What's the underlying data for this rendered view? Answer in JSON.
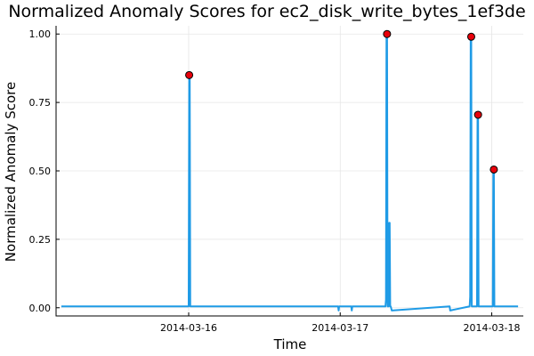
{
  "chart_data": {
    "type": "line",
    "title": "Normalized Anomaly Scores for ec2_disk_write_bytes_1ef3de",
    "xlabel": "Time",
    "ylabel": "Normalized Anomaly Score",
    "xlim": [
      "2014-03-15 03:00",
      "2014-03-18 05:00"
    ],
    "ylim": [
      -0.03,
      1.03
    ],
    "xticks": [
      "2014-03-16",
      "2014-03-17",
      "2014-03-18"
    ],
    "yticks": [
      "0.00",
      "0.25",
      "0.50",
      "0.75",
      "1.00"
    ],
    "grid": true,
    "legend": "none",
    "series": [
      {
        "color": "#1f9be6",
        "x": [
          "2014-03-15 03:50",
          "2014-03-16 00:00",
          "2014-03-16 00:05",
          "2014-03-16 00:10",
          "2014-03-16 00:15",
          "2014-03-16 00:20",
          "2014-03-16 23:40",
          "2014-03-16 23:45",
          "2014-03-16 23:50",
          "2014-03-17 01:45",
          "2014-03-17 01:50",
          "2014-03-17 01:55",
          "2014-03-17 06:00",
          "2014-03-17 07:10",
          "2014-03-17 07:15",
          "2014-03-17 07:20",
          "2014-03-17 07:25",
          "2014-03-17 07:30",
          "2014-03-17 07:40",
          "2014-03-17 07:45",
          "2014-03-17 07:50",
          "2014-03-17 07:55",
          "2014-03-17 08:00",
          "2014-03-17 08:10",
          "2014-03-17 17:20",
          "2014-03-17 17:25",
          "2014-03-17 20:30",
          "2014-03-17 20:35",
          "2014-03-17 20:40",
          "2014-03-17 20:45",
          "2014-03-17 20:50",
          "2014-03-17 21:40",
          "2014-03-17 21:45",
          "2014-03-17 21:50",
          "2014-03-17 21:55",
          "2014-03-17 22:00",
          "2014-03-17 23:20",
          "2014-03-18 00:10",
          "2014-03-18 00:15",
          "2014-03-18 00:20",
          "2014-03-18 00:25",
          "2014-03-18 00:30",
          "2014-03-18 04:10"
        ],
        "y": [
          0.005,
          0.005,
          0.85,
          0.85,
          0.005,
          0.005,
          0.005,
          -0.01,
          0.005,
          0.005,
          -0.01,
          0.005,
          0.005,
          0.005,
          0.03,
          1.0,
          1.0,
          0.005,
          0.005,
          0.31,
          0.31,
          0.005,
          0.005,
          -0.01,
          0.005,
          -0.01,
          0.005,
          0.04,
          0.99,
          0.99,
          0.005,
          0.005,
          0.705,
          0.705,
          0.005,
          0.005,
          0.005,
          0.005,
          0.505,
          0.505,
          0.005,
          0.005,
          0.005
        ]
      }
    ],
    "markers": {
      "color": "#e8000b",
      "x": [
        "2014-03-16 00:05",
        "2014-03-17 07:25",
        "2014-03-17 20:45",
        "2014-03-17 21:50",
        "2014-03-18 00:20"
      ],
      "y": [
        0.85,
        1.0,
        0.99,
        0.705,
        0.505
      ]
    }
  }
}
